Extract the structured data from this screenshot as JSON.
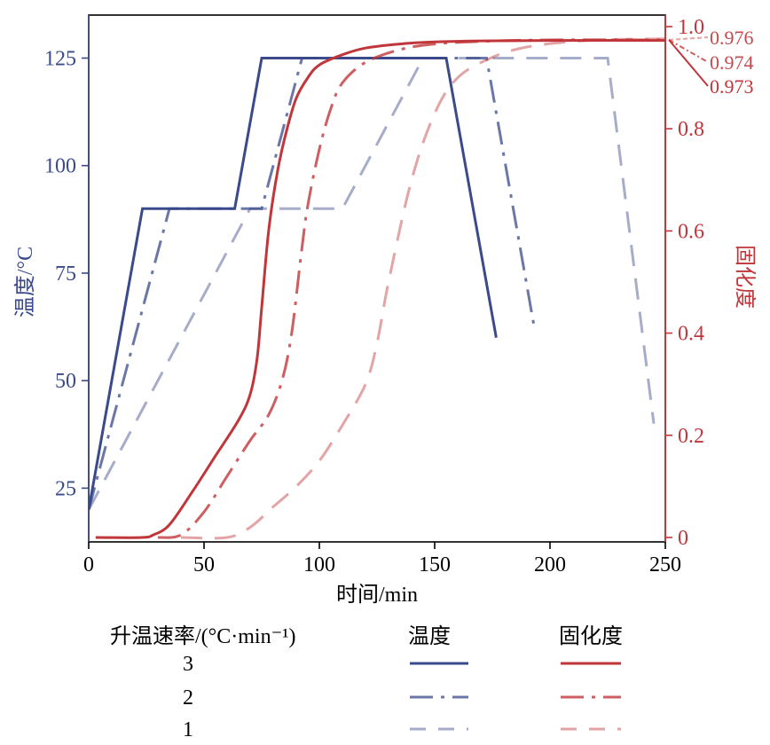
{
  "chart_data": {
    "type": "line",
    "xlabel": "时间/min",
    "ylabel_left": "温度/°C",
    "ylabel_right": "固化度",
    "xlim": [
      0,
      250
    ],
    "ylim_left": [
      12.5,
      135
    ],
    "ylim_right": [
      0,
      1.0
    ],
    "x_ticks": [
      0,
      50,
      100,
      150,
      200,
      250
    ],
    "y_left_ticks": [
      25,
      50,
      75,
      100,
      125
    ],
    "y_right_ticks": [
      "0",
      "0.2",
      "0.4",
      "0.6",
      "0.8",
      "1.0"
    ],
    "y_right_tick_values": [
      0,
      0.2,
      0.4,
      0.6,
      0.8,
      1.0
    ],
    "left_axis_color": "#3a4a8a",
    "right_axis_color": "#c0363a",
    "temperature_series": [
      {
        "rate": "3",
        "style": "solid",
        "opacity": 1.0,
        "x": [
          0,
          23.3,
          63.3,
          75,
          155,
          176.7
        ],
        "y": [
          20,
          90,
          90,
          125,
          125,
          60
        ]
      },
      {
        "rate": "2",
        "style": "dashdot",
        "opacity": 0.75,
        "x": [
          0,
          35,
          75,
          92.5,
          172.5,
          193.3
        ],
        "y": [
          20,
          90,
          90,
          125,
          125,
          62
        ]
      },
      {
        "rate": "1",
        "style": "dashed",
        "opacity": 0.45,
        "x": [
          0,
          70,
          110,
          145,
          225,
          245
        ],
        "y": [
          20,
          90,
          90,
          125,
          125,
          40
        ]
      }
    ],
    "cure_series": [
      {
        "rate": "3",
        "style": "solid",
        "opacity": 1.0,
        "x": [
          3,
          23,
          28,
          35,
          45,
          55,
          65,
          70,
          73,
          75,
          78,
          82,
          86,
          90,
          95,
          100,
          110,
          120,
          135,
          150,
          170,
          200,
          250
        ],
        "y": [
          0,
          0,
          0.005,
          0.025,
          0.09,
          0.16,
          0.23,
          0.28,
          0.35,
          0.45,
          0.6,
          0.72,
          0.8,
          0.86,
          0.9,
          0.925,
          0.945,
          0.958,
          0.966,
          0.97,
          0.972,
          0.973,
          0.973
        ]
      },
      {
        "rate": "2",
        "style": "dashdot",
        "opacity": 0.8,
        "x": [
          30,
          40,
          50,
          60,
          70,
          78,
          84,
          88,
          92,
          95,
          100,
          105,
          110,
          120,
          135,
          150,
          170,
          200,
          250
        ],
        "y": [
          0,
          0.005,
          0.05,
          0.12,
          0.19,
          0.24,
          0.31,
          0.4,
          0.55,
          0.65,
          0.76,
          0.84,
          0.89,
          0.93,
          0.955,
          0.966,
          0.971,
          0.974,
          0.974
        ]
      },
      {
        "rate": "1",
        "style": "dashed",
        "opacity": 0.45,
        "x": [
          40,
          60,
          70,
          80,
          90,
          100,
          110,
          120,
          125,
          130,
          140,
          150,
          160,
          175,
          190,
          210,
          230,
          250
        ],
        "y": [
          0,
          0,
          0.02,
          0.06,
          0.1,
          0.15,
          0.22,
          0.3,
          0.38,
          0.5,
          0.7,
          0.83,
          0.9,
          0.94,
          0.96,
          0.971,
          0.975,
          0.976
        ]
      }
    ],
    "final_cure_labels": [
      "0.976",
      "0.974",
      "0.973"
    ],
    "legend": {
      "header": "升温速率/(°C·min⁻¹)",
      "temperature_label": "温度",
      "cure_label": "固化度",
      "rates": [
        "3",
        "2",
        "1"
      ]
    }
  }
}
